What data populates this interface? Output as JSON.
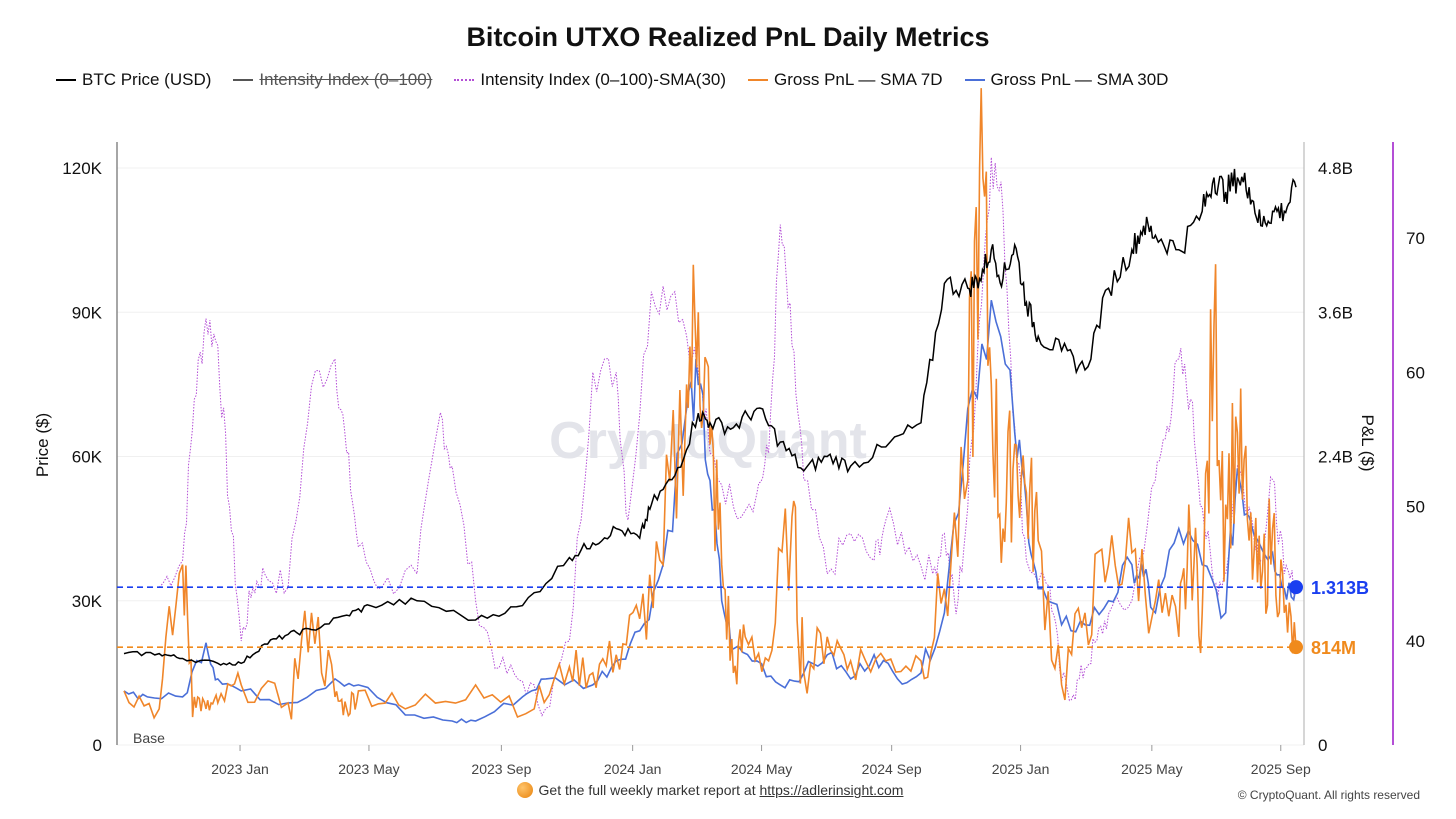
{
  "chart_data": {
    "type": "line",
    "title": "Bitcoin UTXO Realized PnL Daily Metrics",
    "legend": [
      {
        "name": "BTC Price (USD)",
        "color": "#000000",
        "style": "solid",
        "hidden": false
      },
      {
        "name": "Intensity Index (0–100)",
        "color": "#555555",
        "style": "solid",
        "hidden": true
      },
      {
        "name": "Intensity Index (0–100)-SMA(30)",
        "color": "#b44fd6",
        "style": "dotted",
        "hidden": false
      },
      {
        "name": "Gross PnL — SMA 7D",
        "color": "#f0862a",
        "style": "solid",
        "hidden": false
      },
      {
        "name": "Gross PnL — SMA 30D",
        "color": "#4a6fd8",
        "style": "solid",
        "hidden": false
      }
    ],
    "x_ticks": [
      "2023 Jan",
      "2023 May",
      "2023 Sep",
      "2024 Jan",
      "2024 May",
      "2024 Sep",
      "2025 Jan",
      "2025 May",
      "2025 Sep"
    ],
    "y_left": {
      "label": "Price ($)",
      "ticks": [
        "0",
        "30K",
        "60K",
        "90K",
        "120K"
      ],
      "range": [
        0,
        125000
      ]
    },
    "y_right": {
      "label": "P&L ($)",
      "ticks": [
        "0",
        "2.4B",
        "3.6B",
        "4.8B"
      ],
      "range": [
        0,
        5000000000
      ]
    },
    "y_right2": {
      "ticks": [
        "40",
        "50",
        "60",
        "70"
      ],
      "range": [
        32,
        77
      ]
    },
    "base_label": "Base",
    "annotations": [
      {
        "label": "1.313B",
        "value_b": 1.313,
        "color": "#1a3ff0"
      },
      {
        "label": "814M",
        "value_b": 0.814,
        "color": "#f08a1c"
      }
    ],
    "series": [
      {
        "name": "BTC Price (USD)",
        "unit": "K USD",
        "t": [
          0,
          0.03,
          0.05,
          0.08,
          0.1,
          0.12,
          0.14,
          0.16,
          0.19,
          0.21,
          0.25,
          0.3,
          0.34,
          0.38,
          0.4,
          0.42,
          0.44,
          0.45,
          0.47,
          0.49,
          0.5,
          0.52,
          0.54,
          0.56,
          0.58,
          0.6,
          0.62,
          0.65,
          0.68,
          0.7,
          0.72,
          0.73,
          0.74,
          0.75,
          0.76,
          0.77,
          0.78,
          0.8,
          0.82,
          0.84,
          0.86,
          0.87,
          0.88,
          0.9,
          0.92,
          0.93,
          0.94,
          0.95,
          0.96,
          0.97,
          0.98,
          0.99,
          1.0
        ],
        "values": [
          19,
          19,
          18,
          17,
          17,
          21,
          23,
          24,
          27,
          29,
          30,
          26,
          29,
          39,
          42,
          45,
          43,
          50,
          56,
          69,
          67,
          66,
          70,
          63,
          57,
          60,
          58,
          62,
          67,
          96,
          95,
          97,
          103,
          97,
          104,
          92,
          85,
          82,
          78,
          95,
          103,
          108,
          106,
          103,
          111,
          118,
          115,
          118,
          116,
          108,
          111,
          111,
          116
        ]
      },
      {
        "name": "Intensity Index (0–100)-SMA(30)",
        "unit": "index",
        "t": [
          0.03,
          0.05,
          0.06,
          0.07,
          0.08,
          0.09,
          0.1,
          0.11,
          0.12,
          0.14,
          0.16,
          0.18,
          0.19,
          0.2,
          0.22,
          0.25,
          0.27,
          0.28,
          0.3,
          0.32,
          0.34,
          0.36,
          0.38,
          0.4,
          0.42,
          0.43,
          0.45,
          0.47,
          0.49,
          0.5,
          0.52,
          0.54,
          0.55,
          0.56,
          0.57,
          0.58,
          0.6,
          0.62,
          0.64,
          0.65,
          0.67,
          0.69,
          0.7,
          0.71,
          0.72,
          0.73,
          0.74,
          0.75,
          0.76,
          0.77,
          0.79,
          0.8,
          0.81,
          0.82,
          0.83,
          0.84,
          0.86,
          0.88,
          0.89,
          0.9,
          0.91,
          0.92,
          0.93,
          0.94,
          0.95,
          0.96,
          0.97,
          0.98,
          0.99,
          1.0
        ],
        "values": [
          44,
          46,
          58,
          64,
          62,
          50,
          40,
          44,
          45,
          44,
          59,
          61,
          54,
          47,
          44,
          45,
          57,
          53,
          43,
          38,
          37,
          35,
          40,
          60,
          60,
          49,
          66,
          66,
          60,
          54,
          50,
          51,
          54,
          71,
          62,
          52,
          45,
          48,
          46,
          49,
          47,
          45,
          48,
          42,
          50,
          64,
          76,
          72,
          56,
          46,
          44,
          37,
          36,
          38,
          40,
          42,
          43,
          52,
          56,
          61,
          58,
          50,
          44,
          45,
          53,
          50,
          46,
          52,
          45,
          44
        ]
      },
      {
        "name": "Gross PnL — SMA 7D",
        "unit": "B USD",
        "t": [
          0,
          0.03,
          0.05,
          0.06,
          0.07,
          0.08,
          0.1,
          0.14,
          0.16,
          0.18,
          0.19,
          0.2,
          0.24,
          0.3,
          0.35,
          0.38,
          0.4,
          0.42,
          0.44,
          0.46,
          0.48,
          0.49,
          0.5,
          0.51,
          0.52,
          0.53,
          0.55,
          0.57,
          0.58,
          0.6,
          0.62,
          0.65,
          0.68,
          0.7,
          0.72,
          0.73,
          0.74,
          0.75,
          0.76,
          0.77,
          0.78,
          0.8,
          0.82,
          0.84,
          0.86,
          0.88,
          0.9,
          0.91,
          0.92,
          0.93,
          0.94,
          0.95,
          0.96,
          0.97,
          0.98,
          0.99,
          1.0
        ],
        "values": [
          0.45,
          0.3,
          1.5,
          0.4,
          0.3,
          0.35,
          0.5,
          0.35,
          1.1,
          0.4,
          0.3,
          0.45,
          0.3,
          0.5,
          0.3,
          0.65,
          0.6,
          0.75,
          1.05,
          1.5,
          3.0,
          3.6,
          2.5,
          1.5,
          0.6,
          0.9,
          0.7,
          1.9,
          0.6,
          0.9,
          0.7,
          0.7,
          0.7,
          1.3,
          2.2,
          4.8,
          3.0,
          1.8,
          2.5,
          2.1,
          1.7,
          0.5,
          1.1,
          1.5,
          1.6,
          1.2,
          0.9,
          1.7,
          1.1,
          3.5,
          2.0,
          2.6,
          1.7,
          1.3,
          1.8,
          1.1,
          0.81
        ]
      },
      {
        "name": "Gross PnL — SMA 30D",
        "unit": "B USD",
        "t": [
          0,
          0.02,
          0.05,
          0.07,
          0.08,
          0.1,
          0.14,
          0.18,
          0.2,
          0.24,
          0.28,
          0.3,
          0.34,
          0.36,
          0.4,
          0.42,
          0.44,
          0.46,
          0.48,
          0.49,
          0.5,
          0.51,
          0.52,
          0.54,
          0.56,
          0.58,
          0.6,
          0.62,
          0.64,
          0.66,
          0.68,
          0.7,
          0.72,
          0.74,
          0.76,
          0.77,
          0.78,
          0.8,
          0.82,
          0.84,
          0.86,
          0.87,
          0.88,
          0.9,
          0.92,
          0.94,
          0.95,
          0.96,
          0.98,
          0.99,
          1.0
        ],
        "values": [
          0.45,
          0.4,
          0.4,
          0.85,
          0.55,
          0.45,
          0.35,
          0.55,
          0.5,
          0.25,
          0.2,
          0.2,
          0.4,
          0.55,
          0.5,
          0.7,
          0.95,
          1.5,
          2.8,
          3.0,
          2.2,
          1.2,
          0.8,
          0.7,
          0.5,
          0.6,
          0.75,
          0.55,
          0.75,
          0.55,
          0.6,
          1.1,
          2.8,
          3.7,
          2.6,
          2.0,
          1.3,
          1.0,
          1.0,
          1.2,
          1.5,
          1.4,
          1.1,
          1.8,
          1.5,
          1.1,
          2.3,
          1.9,
          1.6,
          1.3,
          1.313
        ]
      }
    ]
  },
  "footer": {
    "text": "Get the full weekly market report at ",
    "link": "https://adlerinsight.com"
  },
  "copyright": "© CryptoQuant. All rights reserved",
  "watermark": "CryptoQuant"
}
